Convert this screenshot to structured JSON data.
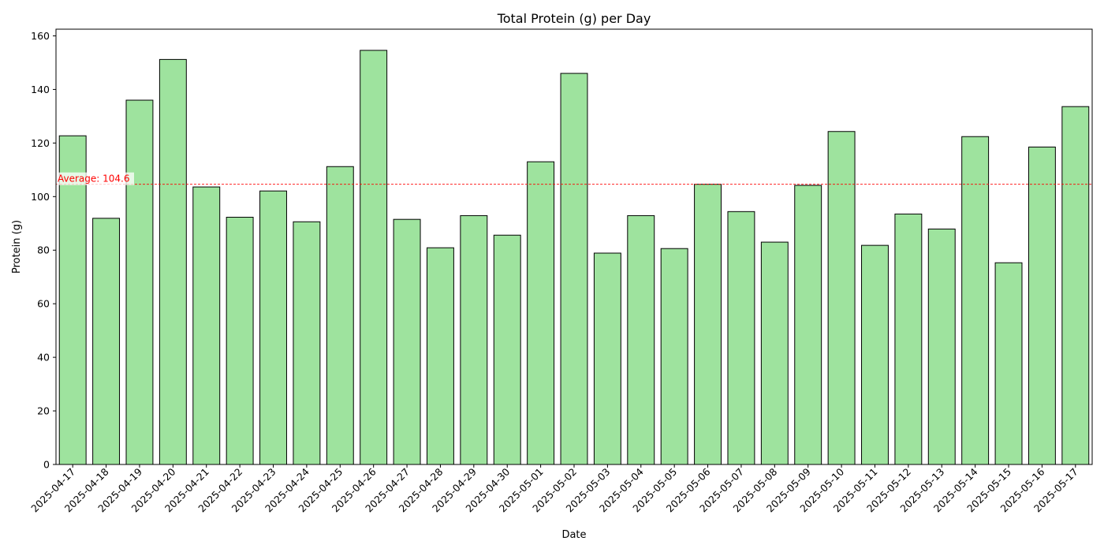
{
  "chart_data": {
    "type": "bar",
    "title": "Total Protein (g) per Day",
    "xlabel": "Date",
    "ylabel": "Protein (g)",
    "ylim": [
      0,
      162.5
    ],
    "yticks": [
      0,
      20,
      40,
      60,
      80,
      100,
      120,
      140,
      160
    ],
    "categories": [
      "2025-04-17",
      "2025-04-18",
      "2025-04-19",
      "2025-04-20",
      "2025-04-21",
      "2025-04-22",
      "2025-04-23",
      "2025-04-24",
      "2025-04-25",
      "2025-04-26",
      "2025-04-27",
      "2025-04-28",
      "2025-04-29",
      "2025-04-30",
      "2025-05-01",
      "2025-05-02",
      "2025-05-03",
      "2025-05-04",
      "2025-05-05",
      "2025-05-06",
      "2025-05-07",
      "2025-05-08",
      "2025-05-09",
      "2025-05-10",
      "2025-05-11",
      "2025-05-12",
      "2025-05-13",
      "2025-05-14",
      "2025-05-15",
      "2025-05-16",
      "2025-05-17"
    ],
    "values": [
      122.7,
      91.9,
      136.0,
      151.2,
      103.6,
      92.3,
      102.1,
      90.6,
      111.2,
      154.6,
      91.5,
      80.9,
      92.9,
      85.6,
      113.0,
      146.0,
      78.9,
      92.9,
      80.6,
      104.6,
      94.4,
      83.0,
      104.2,
      124.3,
      81.8,
      93.5,
      87.9,
      122.4,
      75.3,
      118.5,
      133.6
    ],
    "bar_color": "#9ee39e",
    "bar_edge_color": "#000000",
    "average": {
      "value": 104.6,
      "label": "Average: 104.6",
      "color": "#ff0000"
    },
    "grid": false,
    "legend": "none"
  }
}
